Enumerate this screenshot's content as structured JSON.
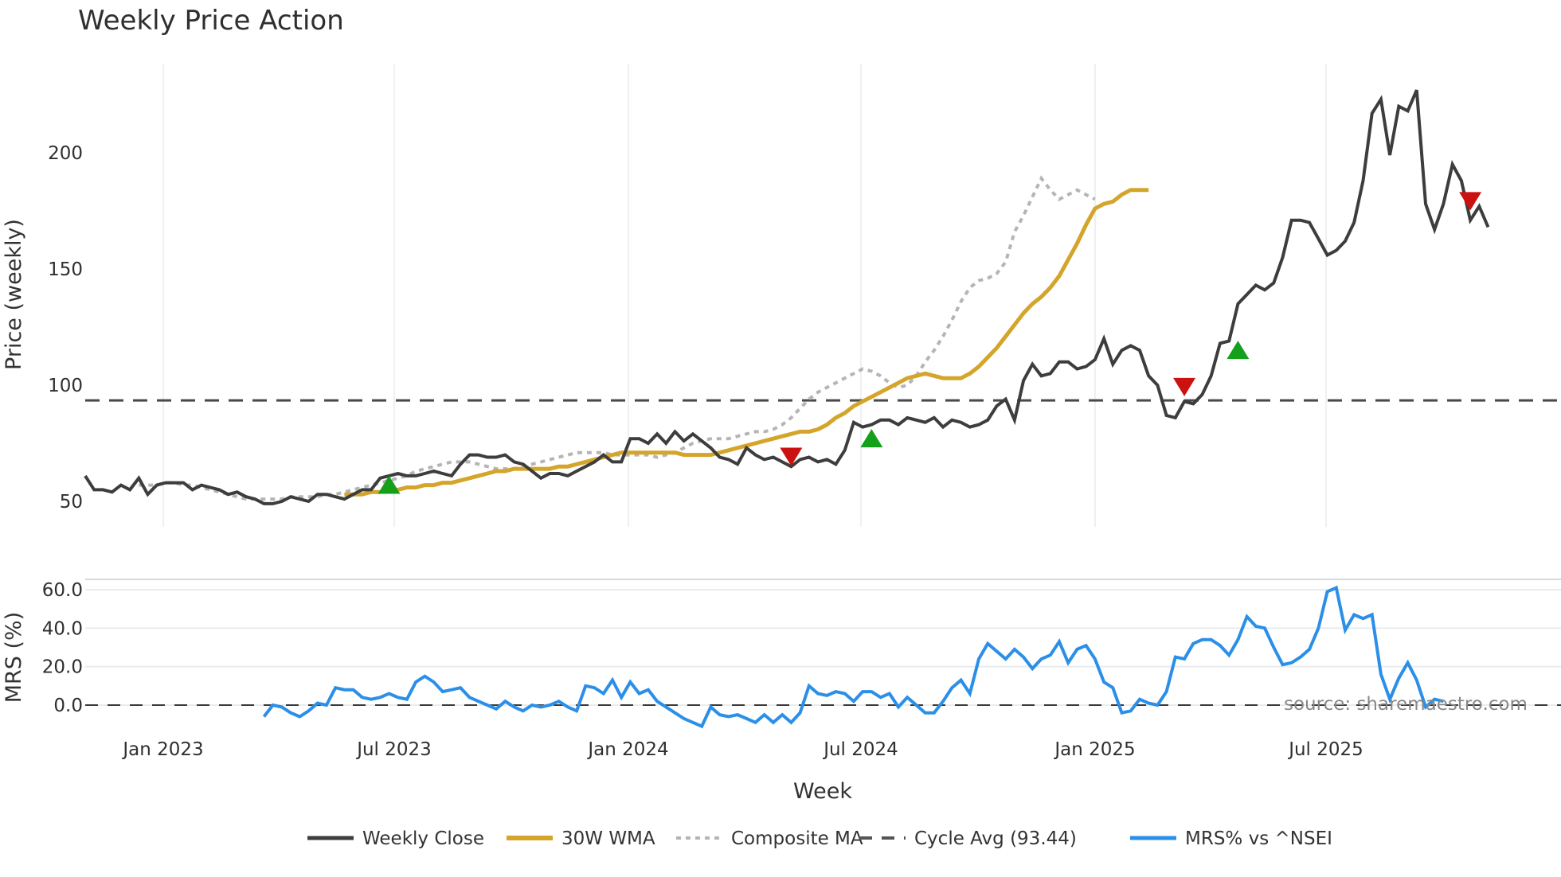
{
  "title": "Weekly Price Action",
  "source_label": "source: sharemaestro.com",
  "colors": {
    "weekly_close": "#3d3d3d",
    "wma": "#d4a52a",
    "composite": "#b5b5b5",
    "cycle_avg": "#4a4a4a",
    "mrs": "#2b8fe8",
    "buy_marker": "#14a01a",
    "sell_marker": "#cc1111",
    "grid": "#e9ecef"
  },
  "chart_data": [
    {
      "type": "line",
      "title": "Weekly Price Action",
      "xlabel": "Week",
      "ylabel": "Price (weekly)",
      "ylim": [
        38,
        236
      ],
      "yticks": [
        50,
        100,
        150,
        200
      ],
      "xticks": [
        "Jan 2023",
        "Jul 2023",
        "Jan 2024",
        "Jul 2024",
        "Jan 2025",
        "Jul 2025"
      ],
      "x_start": "Nov 2022",
      "x_step": "1 week",
      "grid": true,
      "series": [
        {
          "name": "Weekly Close",
          "values": [
            61,
            55,
            55,
            54,
            57,
            55,
            60,
            53,
            57,
            58,
            58,
            58,
            55,
            57,
            56,
            55,
            53,
            54,
            52,
            51,
            49,
            49,
            50,
            52,
            51,
            50,
            53,
            53,
            52,
            51,
            53,
            55,
            55,
            60,
            61,
            62,
            61,
            61,
            62,
            63,
            62,
            61,
            66,
            70,
            70,
            69,
            69,
            70,
            67,
            66,
            63,
            60,
            62,
            62,
            61,
            63,
            65,
            67,
            70,
            67,
            67,
            77,
            77,
            75,
            79,
            75,
            80,
            76,
            79,
            76,
            73,
            69,
            68,
            66,
            73,
            70,
            68,
            69,
            67,
            65,
            68,
            69,
            67,
            68,
            66,
            72,
            84,
            82,
            83,
            85,
            85,
            83,
            86,
            85,
            84,
            86,
            82,
            85,
            84,
            82,
            83,
            85,
            91,
            94,
            85,
            102,
            109,
            104,
            105,
            110,
            110,
            107,
            108,
            111,
            120,
            109,
            115,
            117,
            115,
            104,
            100,
            87,
            86,
            93,
            92,
            96,
            104,
            118,
            119,
            135,
            139,
            143,
            141,
            144,
            155,
            171,
            171,
            170,
            163,
            156,
            158,
            162,
            170,
            188,
            217,
            223,
            199,
            220,
            218,
            227,
            178,
            167,
            178,
            195,
            188,
            171,
            177,
            168
          ],
          "stroke": "#3d3d3d"
        },
        {
          "name": "30W WMA",
          "start_index": 29,
          "values": [
            53,
            53,
            53,
            54,
            54,
            55,
            55,
            56,
            56,
            57,
            57,
            58,
            58,
            59,
            60,
            61,
            62,
            63,
            63,
            64,
            64,
            64,
            64,
            64,
            65,
            65,
            66,
            67,
            68,
            69,
            70,
            71,
            71,
            71,
            71,
            71,
            71,
            71,
            70,
            70,
            70,
            70,
            71,
            72,
            73,
            74,
            75,
            76,
            77,
            78,
            79,
            80,
            80,
            81,
            83,
            86,
            88,
            91,
            93,
            95,
            97,
            99,
            101,
            103,
            104,
            105,
            104,
            103,
            103,
            103,
            105,
            108,
            112,
            116,
            121,
            126,
            131,
            135,
            138,
            142,
            147,
            154,
            161,
            169,
            176,
            178,
            179,
            182,
            184,
            184,
            184
          ],
          "stroke": "#d4a52a"
        },
        {
          "name": "Composite MA",
          "start_index": 6,
          "values": [
            57,
            57,
            57,
            58,
            58,
            57,
            57,
            56,
            55,
            54,
            53,
            52,
            51,
            51,
            51,
            51,
            51,
            52,
            52,
            52,
            52,
            53,
            53,
            54,
            55,
            56,
            57,
            58,
            59,
            60,
            61,
            63,
            64,
            65,
            66,
            67,
            67,
            67,
            66,
            65,
            64,
            64,
            64,
            65,
            66,
            67,
            68,
            69,
            70,
            71,
            71,
            71,
            71,
            70,
            70,
            70,
            70,
            70,
            69,
            70,
            71,
            73,
            75,
            76,
            77,
            77,
            77,
            78,
            79,
            80,
            80,
            81,
            83,
            86,
            90,
            94,
            97,
            99,
            101,
            103,
            105,
            107,
            106,
            104,
            101,
            99,
            100,
            104,
            110,
            115,
            121,
            128,
            136,
            142,
            145,
            146,
            148,
            153,
            166,
            173,
            181,
            189,
            184,
            180,
            182,
            184,
            182,
            180
          ],
          "stroke": "#b5b5b5"
        },
        {
          "name": "Cycle Avg (93.44)",
          "values": [
            93.44
          ],
          "stroke": "#4a4a4a"
        }
      ],
      "markers": [
        {
          "type": "buy",
          "week_index": 34,
          "value": 56
        },
        {
          "type": "sell",
          "week_index": 79,
          "value": 69
        },
        {
          "type": "buy",
          "week_index": 88,
          "value": 76
        },
        {
          "type": "sell",
          "week_index": 123,
          "value": 99
        },
        {
          "type": "buy",
          "week_index": 129,
          "value": 114
        },
        {
          "type": "sell",
          "week_index": 155,
          "value": 179
        }
      ]
    },
    {
      "type": "line",
      "title": "",
      "xlabel": "Week",
      "ylabel": "MRS (%)",
      "ylim": [
        -10,
        66
      ],
      "yticks": [
        0.0,
        20.0,
        40.0,
        60.0
      ],
      "ytick_labels": [
        "0.0",
        "20.0",
        "40.0",
        "60.0"
      ],
      "grid": true,
      "series": [
        {
          "name": "MRS% vs ^NSEI",
          "start_index": 20,
          "values": [
            -6,
            0,
            -1,
            -4,
            -6,
            -3,
            1,
            0,
            9,
            8,
            8,
            4,
            3,
            4,
            6,
            4,
            3,
            12,
            15,
            12,
            7,
            8,
            9,
            4,
            2,
            0,
            -2,
            2,
            -1,
            -3,
            0,
            -1,
            0,
            2,
            -1,
            -3,
            10,
            9,
            6,
            13,
            4,
            12,
            6,
            8,
            2,
            -1,
            -4,
            -7,
            -9,
            -11,
            -1,
            -5,
            -6,
            -5,
            -7,
            -9,
            -5,
            -9,
            -5,
            -9,
            -4,
            10,
            6,
            5,
            7,
            6,
            2,
            7,
            7,
            4,
            6,
            -1,
            4,
            0,
            -4,
            -4,
            2,
            9,
            13,
            6,
            24,
            32,
            28,
            24,
            29,
            25,
            19,
            24,
            26,
            33,
            22,
            29,
            31,
            24,
            12,
            9,
            -4,
            -3,
            3,
            1,
            0,
            7,
            25,
            24,
            32,
            34,
            34,
            31,
            26,
            34,
            46,
            41,
            40,
            30,
            21,
            22,
            25,
            29,
            40,
            59,
            61,
            39,
            47,
            45,
            47,
            16,
            3,
            14,
            22,
            13,
            -1,
            3,
            2
          ],
          "stroke": "#2b8fe8"
        },
        {
          "name": "zero-line",
          "values": [
            0
          ],
          "stroke": "#4a4a4a"
        }
      ]
    }
  ],
  "legend": [
    {
      "label": "Weekly Close",
      "style": "solid-dark"
    },
    {
      "label": "30W WMA",
      "style": "solid-gold"
    },
    {
      "label": "Composite MA",
      "style": "dotted-grey"
    },
    {
      "label": "Cycle Avg (93.44)",
      "style": "dashed-dark"
    },
    {
      "label": "MRS% vs ^NSEI",
      "style": "solid-blue"
    }
  ]
}
